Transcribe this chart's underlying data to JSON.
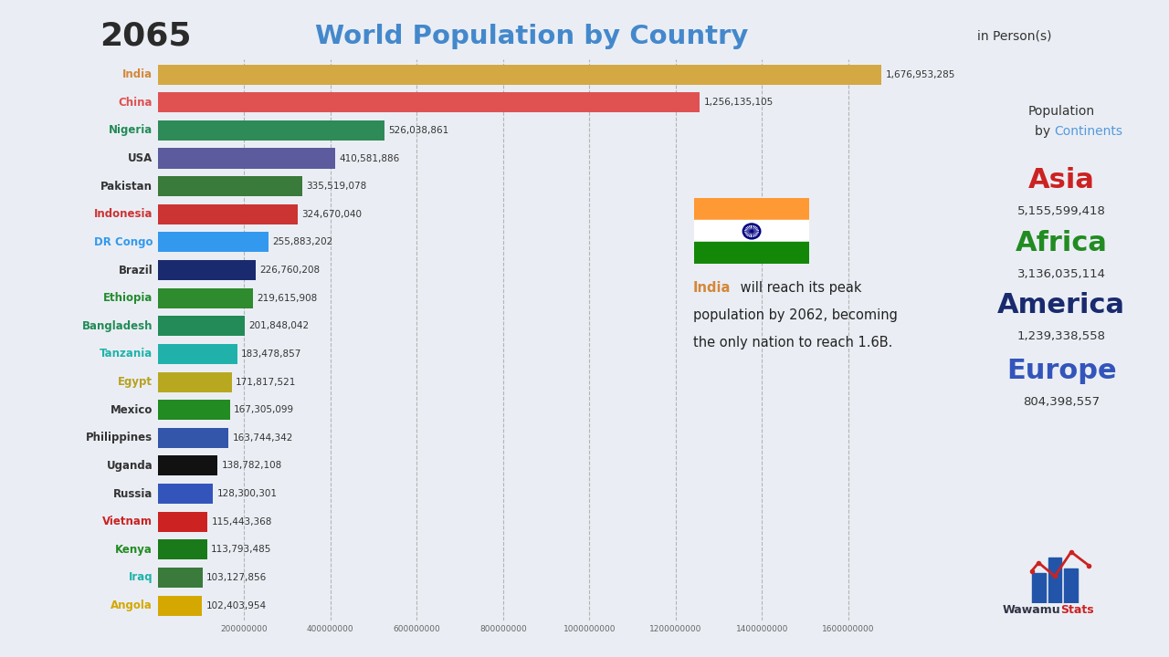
{
  "year": "2065",
  "title": "World Population by Country",
  "subtitle": "in Person(s)",
  "countries": [
    "India",
    "China",
    "Nigeria",
    "USA",
    "Pakistan",
    "Indonesia",
    "DR Congo",
    "Brazil",
    "Ethiopia",
    "Bangladesh",
    "Tanzania",
    "Egypt",
    "Mexico",
    "Philippines",
    "Uganda",
    "Russia",
    "Vietnam",
    "Kenya",
    "Iraq",
    "Angola"
  ],
  "values": [
    1676953285,
    1256135105,
    526038861,
    410581886,
    335519078,
    324670040,
    255883202,
    226760208,
    219615908,
    201848042,
    183478857,
    171817521,
    167305099,
    163744342,
    138782108,
    128300301,
    115443368,
    113793485,
    103127856,
    102403954
  ],
  "bar_colors": [
    "#D4A843",
    "#E05252",
    "#2E8B57",
    "#5B5B9E",
    "#3A7A3A",
    "#CC3333",
    "#3399EE",
    "#1A2A6E",
    "#2E8B2E",
    "#228B57",
    "#20B2AA",
    "#B8A820",
    "#228B22",
    "#3355AA",
    "#111111",
    "#3355BB",
    "#CC2222",
    "#1A7A1A",
    "#3A7A3A",
    "#D4A800"
  ],
  "label_colors": [
    "#D4873A",
    "#E05050",
    "#228B57",
    "#333333",
    "#333333",
    "#CC3333",
    "#3399EE",
    "#333333",
    "#228B2E",
    "#228B57",
    "#20B2AA",
    "#B8A020",
    "#333333",
    "#333333",
    "#333333",
    "#333333",
    "#CC2222",
    "#228B22",
    "#20B2AA",
    "#D4A800"
  ],
  "bg_color": "#EAEEF4",
  "xlim": 1720000000,
  "tick_values": [
    200000000,
    400000000,
    600000000,
    800000000,
    1000000000,
    1200000000,
    1400000000,
    1600000000
  ],
  "continent_names": [
    "Asia",
    "Africa",
    "America",
    "Europe"
  ],
  "continent_colors": [
    "#CC2222",
    "#228B22",
    "#1A2A6E",
    "#3355BB"
  ],
  "continent_values": [
    "5,155,599,418",
    "3,136,035,114",
    "1,239,338,558",
    "804,398,557"
  ],
  "logo_color": "#CC2222",
  "logo_bar_color": "#2255AA"
}
